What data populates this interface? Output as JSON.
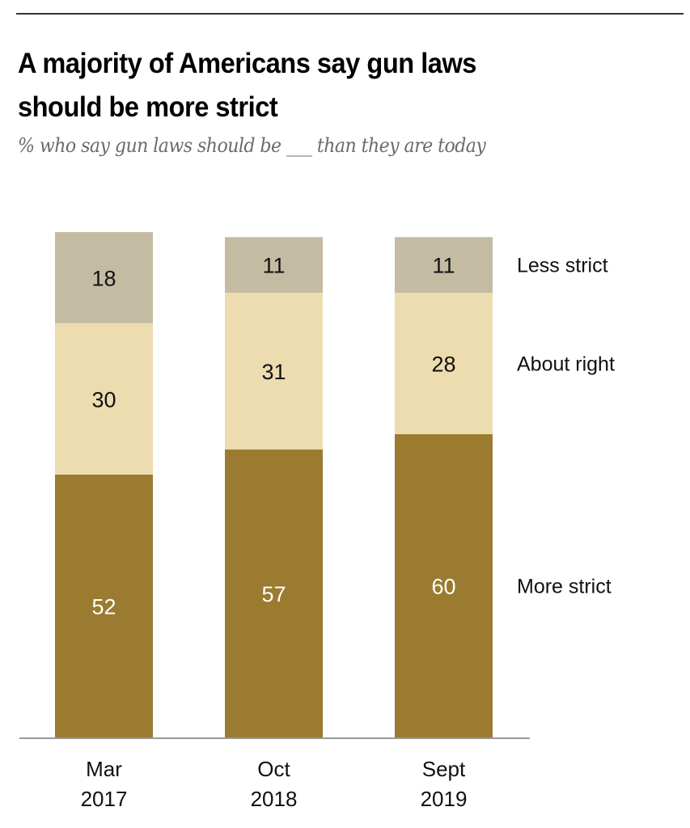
{
  "header": {
    "title_line1": "A majority of Americans say gun laws",
    "title_line2": "should be more strict",
    "subtitle": "% who say gun laws should be ___ than they are today"
  },
  "chart_data": {
    "type": "bar",
    "stacked": true,
    "title": "A majority of Americans say gun laws should be more strict",
    "subtitle": "% who say gun laws should be ___ than they are today",
    "xlabel": "",
    "ylabel": "",
    "ylim": [
      0,
      100
    ],
    "grid": false,
    "legend_placement": "right (inline labels)",
    "categories": [
      {
        "line1": "Mar",
        "line2": "2017"
      },
      {
        "line1": "Oct",
        "line2": "2018"
      },
      {
        "line1": "Sept",
        "line2": "2019"
      }
    ],
    "series": [
      {
        "name": "More strict",
        "color": "#9b7b2f",
        "label_color": "#ffffff",
        "values": [
          52,
          57,
          60
        ]
      },
      {
        "name": "About right",
        "color": "#ecdcb0",
        "label_color": "#111111",
        "values": [
          30,
          31,
          28
        ]
      },
      {
        "name": "Less strict",
        "color": "#c3bca3",
        "label_color": "#111111",
        "values": [
          18,
          11,
          11
        ]
      }
    ],
    "axis_color": "#999999"
  }
}
